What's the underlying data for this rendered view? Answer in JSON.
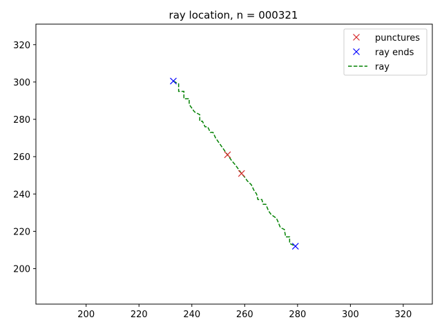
{
  "chart_data": {
    "type": "line",
    "title": "ray location, n = 000321",
    "xlabel": "",
    "ylabel": "",
    "xlim": [
      181,
      331
    ],
    "ylim": [
      181,
      331
    ],
    "xticks": [
      200,
      220,
      240,
      260,
      280,
      300,
      320
    ],
    "yticks": [
      200,
      220,
      240,
      260,
      280,
      300,
      320
    ],
    "grid": false,
    "legend": "top-right",
    "series": [
      {
        "name": "punctures",
        "kind": "markers",
        "marker": "x",
        "color": "#d62728",
        "points": [
          [
            253.5,
            261
          ],
          [
            258.8,
            251
          ]
        ]
      },
      {
        "name": "ray ends",
        "kind": "markers",
        "marker": "x",
        "color": "#0000ff",
        "points": [
          [
            233,
            300.5
          ],
          [
            279.2,
            212
          ]
        ]
      },
      {
        "name": "ray",
        "kind": "line",
        "style": "dashed",
        "color": "#008000",
        "points": [
          [
            233,
            300.5
          ],
          [
            235,
            299
          ],
          [
            235,
            295
          ],
          [
            237,
            295
          ],
          [
            237,
            291
          ],
          [
            239,
            291
          ],
          [
            239,
            288
          ],
          [
            240.5,
            285
          ],
          [
            241,
            284
          ],
          [
            243,
            282.5
          ],
          [
            243,
            279
          ],
          [
            244,
            279
          ],
          [
            245,
            276
          ],
          [
            246,
            276
          ],
          [
            247,
            273
          ],
          [
            248,
            273
          ],
          [
            249,
            270
          ],
          [
            250,
            268
          ],
          [
            251,
            266
          ],
          [
            252,
            264
          ],
          [
            253.5,
            261
          ],
          [
            255,
            258
          ],
          [
            256.5,
            255.5
          ],
          [
            258.8,
            251
          ],
          [
            260,
            249
          ],
          [
            261,
            247
          ],
          [
            262.5,
            245
          ],
          [
            263.5,
            242
          ],
          [
            264.5,
            240
          ],
          [
            265,
            237
          ],
          [
            266.5,
            237
          ],
          [
            267,
            234.5
          ],
          [
            268,
            234.5
          ],
          [
            269,
            231
          ],
          [
            270,
            229
          ],
          [
            271,
            228
          ],
          [
            272,
            227
          ],
          [
            272.5,
            225.5
          ],
          [
            273.5,
            222
          ],
          [
            275,
            221
          ],
          [
            275.5,
            217
          ],
          [
            277,
            217
          ],
          [
            277,
            213.5
          ],
          [
            279.2,
            212
          ]
        ]
      }
    ]
  }
}
